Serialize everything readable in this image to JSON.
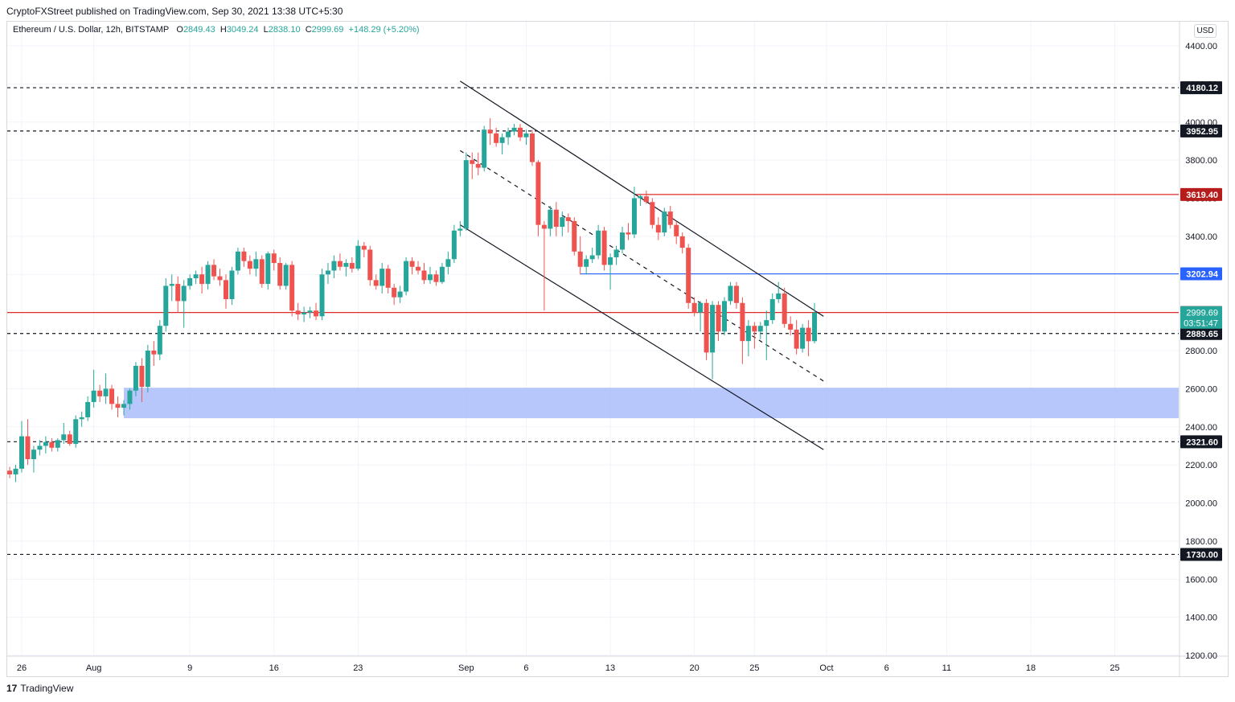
{
  "header": {
    "published": "CryptoFXStreet published on TradingView.com, Sep 30, 2021 13:38 UTC+5:30"
  },
  "legend": {
    "symbol": "Ethereum / U.S. Dollar, 12h, BITSTAMP",
    "o_label": "O",
    "o_value": "2849.43",
    "h_label": "H",
    "h_value": "3049.24",
    "l_label": "L",
    "l_value": "2838.10",
    "c_label": "C",
    "c_value": "2999.69",
    "change": "+148.29 (+5.20%)"
  },
  "currency": "USD",
  "footer": {
    "logo": "17",
    "brand": "TradingView"
  },
  "colors": {
    "up": "#26a69a",
    "down": "#ef5350",
    "zone": "#aabdfc",
    "resistance": "#e02a2a",
    "support_blue": "#2962ff",
    "bg": "#ffffff"
  },
  "chart_data": {
    "type": "candlestick",
    "title": "",
    "symbol": "Ethereum / U.S. Dollar, 12h, BITSTAMP",
    "interval": "12h",
    "ylim": [
      1200,
      4550
    ],
    "y_ticks": [
      "4400.00",
      "4200.00",
      "4000.00",
      "3800.00",
      "3600.00",
      "3400.00",
      "3200.00",
      "3000.00",
      "2800.00",
      "2600.00",
      "2400.00",
      "2200.00",
      "2000.00",
      "1800.00",
      "1600.00",
      "1400.00",
      "1200.00"
    ],
    "x_labels": [
      {
        "label": "26",
        "date": "2021-07-26"
      },
      {
        "label": "Aug",
        "date": "2021-08-01"
      },
      {
        "label": "9",
        "date": "2021-08-09"
      },
      {
        "label": "16",
        "date": "2021-08-16"
      },
      {
        "label": "23",
        "date": "2021-08-23"
      },
      {
        "label": "Sep",
        "date": "2021-09-01"
      },
      {
        "label": "6",
        "date": "2021-09-06"
      },
      {
        "label": "13",
        "date": "2021-09-13"
      },
      {
        "label": "20",
        "date": "2021-09-20"
      },
      {
        "label": "25",
        "date": "2021-09-25"
      },
      {
        "label": "Oct",
        "date": "2021-10-01"
      },
      {
        "label": "6",
        "date": "2021-10-06"
      },
      {
        "label": "11",
        "date": "2021-10-11"
      },
      {
        "label": "18",
        "date": "2021-10-18"
      },
      {
        "label": "25",
        "date": "2021-10-25"
      }
    ],
    "price_levels": [
      {
        "value": 4180.12,
        "label": "4180.12",
        "style": "dashed",
        "color": "#131722",
        "tag_bg": "#131722"
      },
      {
        "value": 3952.95,
        "label": "3952.95",
        "style": "dashed",
        "color": "#131722",
        "tag_bg": "#131722"
      },
      {
        "value": 3619.4,
        "label": "3619.40",
        "style": "solid",
        "color": "#e02a2a",
        "tag_bg": "#b71c1c",
        "from_date": "2021-09-15"
      },
      {
        "value": 3202.94,
        "label": "3202.94",
        "style": "solid",
        "color": "#2962ff",
        "tag_bg": "#2962ff",
        "from_date": "2021-09-10.5"
      },
      {
        "value": 3000.0,
        "label": "3000.00",
        "style": "solid",
        "color": "#e02a2a",
        "tag_bg": "#b71c1c"
      },
      {
        "value": 2889.65,
        "label": "2889.65",
        "style": "dashed",
        "color": "#131722",
        "tag_bg": "#131722"
      },
      {
        "value": 2321.6,
        "label": "2321.60",
        "style": "dashed",
        "color": "#131722",
        "tag_bg": "#131722"
      },
      {
        "value": 1730.0,
        "label": "1730.00",
        "style": "dashed",
        "color": "#131722",
        "tag_bg": "#131722"
      }
    ],
    "last_price": {
      "value": 2999.69,
      "label": "2999.69",
      "countdown": "03:51:47",
      "color": "#26a69a"
    },
    "zone": {
      "from": 2445,
      "to": 2605,
      "start_date": "2021-08-03.5"
    },
    "channel": {
      "upper": [
        {
          "date": "2021-08-31.5",
          "price": 4215
        },
        {
          "date": "2021-09-30.75",
          "price": 2980
        }
      ],
      "middle": [
        {
          "date": "2021-08-31.5",
          "price": 3850
        },
        {
          "date": "2021-09-30.75",
          "price": 2640
        }
      ],
      "lower": [
        {
          "date": "2021-08-31.5",
          "price": 3460
        },
        {
          "date": "2021-09-30.75",
          "price": 2280
        }
      ]
    },
    "candles": [
      [
        "2021-07-25.0",
        2170,
        2190,
        2130,
        2150
      ],
      [
        "2021-07-25.5",
        2150,
        2200,
        2110,
        2180
      ],
      [
        "2021-07-26.0",
        2180,
        2430,
        2160,
        2350
      ],
      [
        "2021-07-26.5",
        2350,
        2440,
        2200,
        2230
      ],
      [
        "2021-07-27.0",
        2230,
        2300,
        2160,
        2280
      ],
      [
        "2021-07-27.5",
        2280,
        2330,
        2250,
        2300
      ],
      [
        "2021-07-28.0",
        2300,
        2350,
        2260,
        2320
      ],
      [
        "2021-07-28.5",
        2320,
        2340,
        2270,
        2290
      ],
      [
        "2021-07-29.0",
        2290,
        2340,
        2270,
        2330
      ],
      [
        "2021-07-29.5",
        2330,
        2420,
        2310,
        2360
      ],
      [
        "2021-07-30.0",
        2360,
        2380,
        2300,
        2310
      ],
      [
        "2021-07-30.5",
        2310,
        2460,
        2290,
        2440
      ],
      [
        "2021-07-31.0",
        2440,
        2480,
        2400,
        2450
      ],
      [
        "2021-07-31.5",
        2450,
        2560,
        2430,
        2530
      ],
      [
        "2021-08-01.0",
        2530,
        2700,
        2500,
        2590
      ],
      [
        "2021-08-01.5",
        2590,
        2620,
        2530,
        2560
      ],
      [
        "2021-08-02.0",
        2560,
        2680,
        2520,
        2600
      ],
      [
        "2021-08-02.5",
        2600,
        2620,
        2490,
        2520
      ],
      [
        "2021-08-03.0",
        2520,
        2560,
        2450,
        2500
      ],
      [
        "2021-08-03.5",
        2500,
        2540,
        2460,
        2520
      ],
      [
        "2021-08-04.0",
        2520,
        2600,
        2490,
        2590
      ],
      [
        "2021-08-04.5",
        2590,
        2740,
        2560,
        2720
      ],
      [
        "2021-08-05.0",
        2720,
        2760,
        2530,
        2610
      ],
      [
        "2021-08-05.5",
        2610,
        2830,
        2580,
        2800
      ],
      [
        "2021-08-06.0",
        2800,
        2850,
        2720,
        2780
      ],
      [
        "2021-08-06.5",
        2780,
        2960,
        2750,
        2930
      ],
      [
        "2021-08-07.0",
        2930,
        3180,
        2900,
        3140
      ],
      [
        "2021-08-07.5",
        3140,
        3200,
        3060,
        3150
      ],
      [
        "2021-08-08.0",
        3150,
        3190,
        3000,
        3060
      ],
      [
        "2021-08-08.5",
        3060,
        3170,
        2920,
        3140
      ],
      [
        "2021-08-09.0",
        3140,
        3200,
        3120,
        3180
      ],
      [
        "2021-08-09.5",
        3180,
        3220,
        3150,
        3200
      ],
      [
        "2021-08-10.0",
        3200,
        3240,
        3100,
        3150
      ],
      [
        "2021-08-10.5",
        3150,
        3270,
        3120,
        3250
      ],
      [
        "2021-08-11.0",
        3250,
        3280,
        3170,
        3190
      ],
      [
        "2021-08-11.5",
        3190,
        3230,
        3140,
        3170
      ],
      [
        "2021-08-12.0",
        3170,
        3200,
        3020,
        3070
      ],
      [
        "2021-08-12.5",
        3070,
        3240,
        3040,
        3220
      ],
      [
        "2021-08-13.0",
        3220,
        3340,
        3200,
        3320
      ],
      [
        "2021-08-13.5",
        3320,
        3340,
        3240,
        3270
      ],
      [
        "2021-08-14.0",
        3270,
        3300,
        3200,
        3230
      ],
      [
        "2021-08-14.5",
        3230,
        3320,
        3190,
        3280
      ],
      [
        "2021-08-15.0",
        3280,
        3300,
        3130,
        3150
      ],
      [
        "2021-08-15.5",
        3150,
        3320,
        3120,
        3310
      ],
      [
        "2021-08-16.0",
        3310,
        3330,
        3220,
        3260
      ],
      [
        "2021-08-16.5",
        3260,
        3290,
        3120,
        3140
      ],
      [
        "2021-08-17.0",
        3140,
        3260,
        3120,
        3250
      ],
      [
        "2021-08-17.5",
        3250,
        3270,
        2980,
        3010
      ],
      [
        "2021-08-18.0",
        3010,
        3050,
        2960,
        2990
      ],
      [
        "2021-08-18.5",
        2990,
        3030,
        2950,
        3000
      ],
      [
        "2021-08-19.0",
        3000,
        3030,
        2970,
        3010
      ],
      [
        "2021-08-19.5",
        3010,
        3050,
        2960,
        2980
      ],
      [
        "2021-08-20.0",
        2980,
        3230,
        2960,
        3200
      ],
      [
        "2021-08-20.5",
        3200,
        3260,
        3150,
        3220
      ],
      [
        "2021-08-21.0",
        3220,
        3300,
        3180,
        3270
      ],
      [
        "2021-08-21.5",
        3270,
        3310,
        3220,
        3240
      ],
      [
        "2021-08-22.0",
        3240,
        3280,
        3190,
        3260
      ],
      [
        "2021-08-22.5",
        3260,
        3290,
        3210,
        3230
      ],
      [
        "2021-08-23.0",
        3230,
        3380,
        3220,
        3350
      ],
      [
        "2021-08-23.5",
        3350,
        3370,
        3290,
        3330
      ],
      [
        "2021-08-24.0",
        3330,
        3350,
        3140,
        3170
      ],
      [
        "2021-08-24.5",
        3170,
        3200,
        3120,
        3140
      ],
      [
        "2021-08-25.0",
        3140,
        3260,
        3100,
        3230
      ],
      [
        "2021-08-25.5",
        3230,
        3250,
        3100,
        3130
      ],
      [
        "2021-08-26.0",
        3130,
        3150,
        3040,
        3080
      ],
      [
        "2021-08-26.5",
        3080,
        3140,
        3050,
        3110
      ],
      [
        "2021-08-27.0",
        3110,
        3290,
        3090,
        3270
      ],
      [
        "2021-08-27.5",
        3270,
        3290,
        3200,
        3240
      ],
      [
        "2021-08-28.0",
        3240,
        3270,
        3200,
        3220
      ],
      [
        "2021-08-28.5",
        3220,
        3260,
        3150,
        3170
      ],
      [
        "2021-08-29.0",
        3170,
        3240,
        3150,
        3200
      ],
      [
        "2021-08-29.5",
        3200,
        3220,
        3140,
        3160
      ],
      [
        "2021-08-30.0",
        3160,
        3260,
        3150,
        3240
      ],
      [
        "2021-08-30.5",
        3240,
        3320,
        3200,
        3280
      ],
      [
        "2021-08-31.0",
        3280,
        3460,
        3260,
        3430
      ],
      [
        "2021-08-31.5",
        3430,
        3480,
        3400,
        3440
      ],
      [
        "2021-09-01.0",
        3440,
        3840,
        3430,
        3800
      ],
      [
        "2021-09-01.5",
        3800,
        3840,
        3700,
        3780
      ],
      [
        "2021-09-02.0",
        3780,
        3840,
        3720,
        3760
      ],
      [
        "2021-09-02.5",
        3760,
        3980,
        3740,
        3960
      ],
      [
        "2021-09-03.0",
        3960,
        4020,
        3880,
        3940
      ],
      [
        "2021-09-03.5",
        3940,
        3970,
        3870,
        3890
      ],
      [
        "2021-09-04.0",
        3890,
        3940,
        3830,
        3920
      ],
      [
        "2021-09-04.5",
        3920,
        3970,
        3880,
        3950
      ],
      [
        "2021-09-05.0",
        3950,
        3990,
        3930,
        3970
      ],
      [
        "2021-09-05.5",
        3970,
        3990,
        3900,
        3920
      ],
      [
        "2021-09-06.0",
        3920,
        3960,
        3880,
        3940
      ],
      [
        "2021-09-06.5",
        3940,
        3960,
        3770,
        3790
      ],
      [
        "2021-09-07.0",
        3790,
        3800,
        3400,
        3460
      ],
      [
        "2021-09-07.5",
        3460,
        3480,
        3010,
        3440
      ],
      [
        "2021-09-08.0",
        3440,
        3560,
        3400,
        3540
      ],
      [
        "2021-09-08.5",
        3540,
        3580,
        3400,
        3450
      ],
      [
        "2021-09-09.0",
        3450,
        3530,
        3400,
        3500
      ],
      [
        "2021-09-09.5",
        3500,
        3520,
        3420,
        3480
      ],
      [
        "2021-09-10.0",
        3480,
        3500,
        3300,
        3320
      ],
      [
        "2021-09-10.5",
        3320,
        3400,
        3200,
        3240
      ],
      [
        "2021-09-11.0",
        3240,
        3300,
        3200,
        3280
      ],
      [
        "2021-09-11.5",
        3280,
        3340,
        3260,
        3300
      ],
      [
        "2021-09-12.0",
        3300,
        3460,
        3280,
        3430
      ],
      [
        "2021-09-12.5",
        3430,
        3450,
        3220,
        3250
      ],
      [
        "2021-09-13.0",
        3250,
        3310,
        3120,
        3290
      ],
      [
        "2021-09-13.5",
        3290,
        3350,
        3250,
        3330
      ],
      [
        "2021-09-14.0",
        3330,
        3450,
        3310,
        3420
      ],
      [
        "2021-09-14.5",
        3420,
        3470,
        3380,
        3410
      ],
      [
        "2021-09-15.0",
        3410,
        3660,
        3390,
        3600
      ],
      [
        "2021-09-15.5",
        3600,
        3620,
        3560,
        3610
      ],
      [
        "2021-09-16.0",
        3610,
        3640,
        3570,
        3580
      ],
      [
        "2021-09-16.5",
        3580,
        3600,
        3440,
        3460
      ],
      [
        "2021-09-17.0",
        3460,
        3500,
        3380,
        3420
      ],
      [
        "2021-09-17.5",
        3420,
        3550,
        3400,
        3530
      ],
      [
        "2021-09-18.0",
        3530,
        3560,
        3440,
        3460
      ],
      [
        "2021-09-18.5",
        3460,
        3480,
        3360,
        3400
      ],
      [
        "2021-09-19.0",
        3400,
        3420,
        3310,
        3340
      ],
      [
        "2021-09-19.5",
        3340,
        3360,
        3020,
        3050
      ],
      [
        "2021-09-20.0",
        3050,
        3080,
        2980,
        3000
      ],
      [
        "2021-09-20.5",
        3000,
        3060,
        2900,
        3050
      ],
      [
        "2021-09-21.0",
        3050,
        3070,
        2750,
        2790
      ],
      [
        "2021-09-21.5",
        2790,
        3060,
        2650,
        3040
      ],
      [
        "2021-09-22.0",
        3040,
        3060,
        2850,
        2900
      ],
      [
        "2021-09-22.5",
        2900,
        3080,
        2880,
        3060
      ],
      [
        "2021-09-23.0",
        3060,
        3160,
        3040,
        3140
      ],
      [
        "2021-09-23.5",
        3140,
        3160,
        3020,
        3050
      ],
      [
        "2021-09-24.0",
        3050,
        3080,
        2730,
        2850
      ],
      [
        "2021-09-24.5",
        2850,
        2960,
        2770,
        2930
      ],
      [
        "2021-09-25.0",
        2930,
        2950,
        2810,
        2900
      ],
      [
        "2021-09-25.5",
        2900,
        2950,
        2860,
        2930
      ],
      [
        "2021-09-26.0",
        2930,
        3010,
        2750,
        2960
      ],
      [
        "2021-09-26.5",
        2960,
        3100,
        2940,
        3070
      ],
      [
        "2021-09-27.0",
        3070,
        3160,
        3050,
        3100
      ],
      [
        "2021-09-27.5",
        3100,
        3130,
        2920,
        2940
      ],
      [
        "2021-09-28.0",
        2940,
        2980,
        2880,
        2910
      ],
      [
        "2021-09-28.5",
        2910,
        2960,
        2780,
        2810
      ],
      [
        "2021-09-29.0",
        2810,
        2940,
        2790,
        2920
      ],
      [
        "2021-09-29.5",
        2920,
        2960,
        2770,
        2849
      ],
      [
        "2021-09-30.0",
        2849.43,
        3049.24,
        2838.1,
        2999.69
      ]
    ]
  }
}
